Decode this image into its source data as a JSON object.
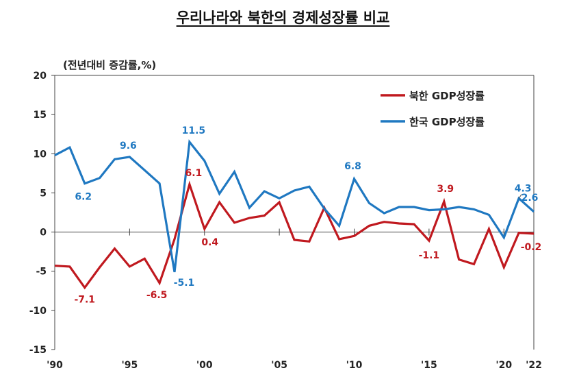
{
  "title": "우리나라와 북한의 경제성장률 비교",
  "chart_data": {
    "type": "line",
    "title": "우리나라와 북한의 경제성장률 비교",
    "ylabel": "(전년대비 증감률,%)",
    "xlabel": "",
    "ylim": [
      -15,
      20
    ],
    "yticks": [
      20,
      15,
      10,
      5,
      0,
      -5,
      -10,
      -15
    ],
    "xlim": [
      1990,
      2022
    ],
    "xticks": [
      {
        "year": 1990,
        "label": "'90"
      },
      {
        "year": 1995,
        "label": "'95"
      },
      {
        "year": 2000,
        "label": "'00"
      },
      {
        "year": 2005,
        "label": "'05"
      },
      {
        "year": 2010,
        "label": "'10"
      },
      {
        "year": 2015,
        "label": "'15"
      },
      {
        "year": 2020,
        "label": "'20"
      },
      {
        "year": 2022,
        "label": "'22"
      }
    ],
    "grid": false,
    "legend_position": "top-right",
    "x": [
      1990,
      1991,
      1992,
      1993,
      1994,
      1995,
      1996,
      1997,
      1998,
      1999,
      2000,
      2001,
      2002,
      2003,
      2004,
      2005,
      2006,
      2007,
      2008,
      2009,
      2010,
      2011,
      2012,
      2013,
      2014,
      2015,
      2016,
      2017,
      2018,
      2019,
      2020,
      2021,
      2022
    ],
    "series": [
      {
        "name": "북한 GDP성장률",
        "color": "#c0191f",
        "values": [
          -4.3,
          -4.4,
          -7.1,
          -4.5,
          -2.1,
          -4.4,
          -3.4,
          -6.5,
          -0.9,
          6.1,
          0.4,
          3.8,
          1.2,
          1.8,
          2.1,
          3.8,
          -1.0,
          -1.2,
          3.1,
          -0.9,
          -0.5,
          0.8,
          1.3,
          1.1,
          1.0,
          -1.1,
          3.9,
          -3.5,
          -4.1,
          0.4,
          -4.5,
          -0.1,
          -0.2
        ],
        "labels": [
          {
            "year": 1992,
            "text": "-7.1"
          },
          {
            "year": 1997,
            "text": "-6.5"
          },
          {
            "year": 1999,
            "text": "6.1"
          },
          {
            "year": 2000,
            "text": "0.4"
          },
          {
            "year": 2015,
            "text": "-1.1"
          },
          {
            "year": 2016,
            "text": "3.9"
          },
          {
            "year": 2022,
            "text": "-0.2"
          }
        ]
      },
      {
        "name": "한국 GDP성장률",
        "color": "#1f78c1",
        "values": [
          9.8,
          10.8,
          6.2,
          6.9,
          9.3,
          9.6,
          7.9,
          6.2,
          -5.1,
          11.5,
          9.1,
          4.9,
          7.7,
          3.1,
          5.2,
          4.3,
          5.3,
          5.8,
          3.0,
          0.8,
          6.8,
          3.7,
          2.4,
          3.2,
          3.2,
          2.8,
          2.9,
          3.2,
          2.9,
          2.2,
          -0.7,
          4.3,
          2.6
        ],
        "labels": [
          {
            "year": 1992,
            "text": "6.2"
          },
          {
            "year": 1995,
            "text": "9.6"
          },
          {
            "year": 1998,
            "text": "-5.1"
          },
          {
            "year": 1999,
            "text": "11.5"
          },
          {
            "year": 2010,
            "text": "6.8"
          },
          {
            "year": 2021,
            "text": "4.3"
          },
          {
            "year": 2022,
            "text": "2.6"
          }
        ]
      }
    ]
  }
}
